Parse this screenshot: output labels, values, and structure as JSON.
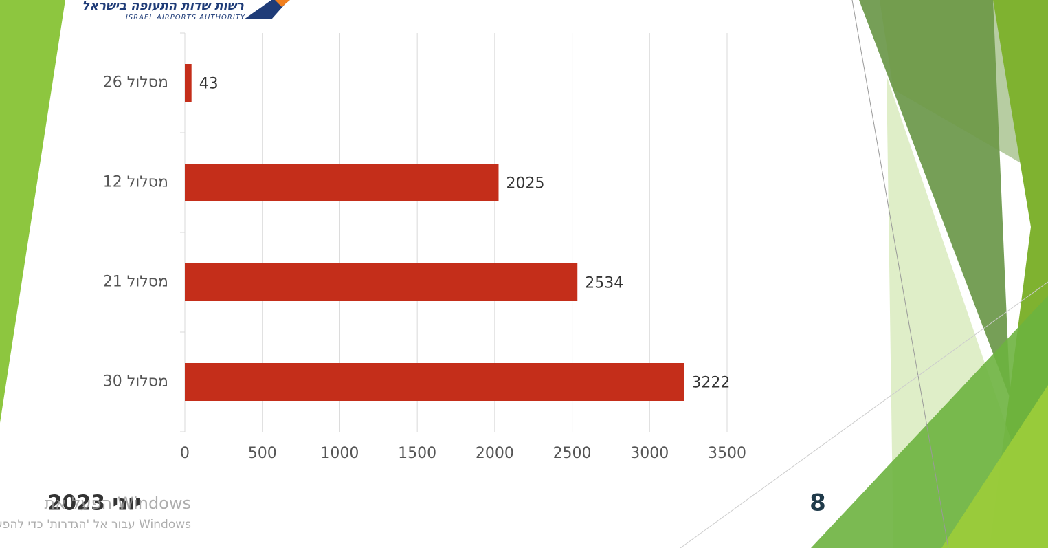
{
  "logo": {
    "hebrew": "רשות שדות התעופה בישראל",
    "english": "ISRAEL AIRPORTS AUTHORITY"
  },
  "chart_data": {
    "type": "bar",
    "orientation": "horizontal",
    "categories": [
      "מסלול 26",
      "מסלול 12",
      "מסלול 21",
      "מסלול 30"
    ],
    "values": [
      43,
      2025,
      2534,
      3222
    ],
    "color": "#c42e1a",
    "xlim": [
      0,
      3500
    ],
    "xticks": [
      0,
      500,
      1000,
      1500,
      2000,
      2500,
      3000,
      3500
    ],
    "grid": true
  },
  "footer": {
    "date": "יוני 2023",
    "page": "8"
  },
  "watermark": {
    "line1": "הפעל את Windows",
    "line2": "עבור אל 'הגדרות' כדי להפעיל את Windows"
  }
}
